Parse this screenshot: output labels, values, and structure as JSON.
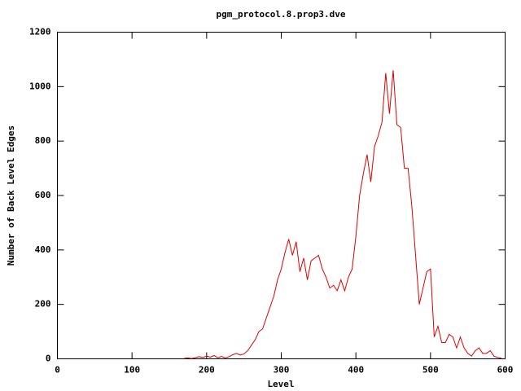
{
  "chart_data": {
    "type": "line",
    "title": "pgm_protocol.8.prop3.dve",
    "x_label": "Level",
    "y_label": "Number of Back Level Edges",
    "x": [
      170,
      175,
      180,
      185,
      190,
      195,
      200,
      205,
      210,
      215,
      220,
      225,
      230,
      235,
      240,
      245,
      250,
      255,
      260,
      265,
      270,
      275,
      280,
      285,
      290,
      295,
      300,
      305,
      310,
      315,
      320,
      325,
      330,
      335,
      340,
      345,
      350,
      355,
      360,
      365,
      370,
      375,
      380,
      385,
      390,
      395,
      400,
      405,
      410,
      415,
      420,
      425,
      430,
      435,
      440,
      445,
      450,
      455,
      460,
      465,
      470,
      475,
      480,
      485,
      490,
      495,
      500,
      505,
      510,
      515,
      520,
      525,
      530,
      535,
      540,
      545,
      550,
      555,
      560,
      565,
      570,
      575,
      580,
      585,
      590,
      595
    ],
    "series": [
      {
        "name": "Number of Back Level Edges",
        "color": "#dd0000",
        "values": [
          2,
          3,
          1,
          4,
          8,
          5,
          10,
          6,
          12,
          4,
          9,
          3,
          8,
          15,
          20,
          14,
          18,
          30,
          50,
          70,
          100,
          110,
          150,
          190,
          230,
          290,
          330,
          390,
          440,
          380,
          430,
          320,
          370,
          290,
          360,
          370,
          380,
          330,
          300,
          260,
          270,
          250,
          290,
          250,
          300,
          330,
          450,
          600,
          680,
          750,
          650,
          780,
          820,
          870,
          1050,
          900,
          1060,
          860,
          850,
          700,
          700,
          560,
          380,
          200,
          260,
          320,
          330,
          80,
          120,
          60,
          60,
          90,
          80,
          40,
          80,
          40,
          20,
          10,
          30,
          40,
          20,
          20,
          30,
          10,
          5,
          2
        ]
      }
    ],
    "xlim": [
      0,
      600
    ],
    "ylim": [
      0,
      1200
    ],
    "xticks": [
      0,
      100,
      200,
      300,
      400,
      500,
      600
    ],
    "yticks": [
      0,
      200,
      400,
      600,
      800,
      1000,
      1200
    ]
  }
}
